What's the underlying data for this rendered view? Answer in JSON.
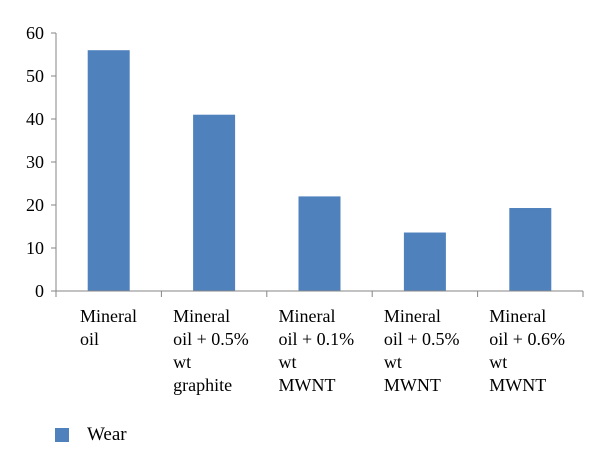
{
  "chart_data": {
    "type": "bar",
    "categories": [
      [
        "Mineral",
        "oil"
      ],
      [
        "Mineral",
        "oil + 0.5%",
        "wt",
        "graphite"
      ],
      [
        "Mineral",
        "oil + 0.1%",
        "wt",
        "MWNT"
      ],
      [
        "Mineral",
        "oil + 0.5%",
        "wt",
        "MWNT"
      ],
      [
        "Mineral",
        "oil + 0.6%",
        "wt",
        "MWNT"
      ]
    ],
    "series": [
      {
        "name": "Wear",
        "values": [
          56,
          41,
          22,
          13.6,
          19.3
        ],
        "color": "#4f81bd"
      }
    ],
    "ylim": [
      0,
      60
    ],
    "yticks": [
      0,
      10,
      20,
      30,
      40,
      50,
      60
    ],
    "title": "",
    "xlabel": "",
    "ylabel": "",
    "grid": false,
    "legend_position": "bottom-left"
  }
}
